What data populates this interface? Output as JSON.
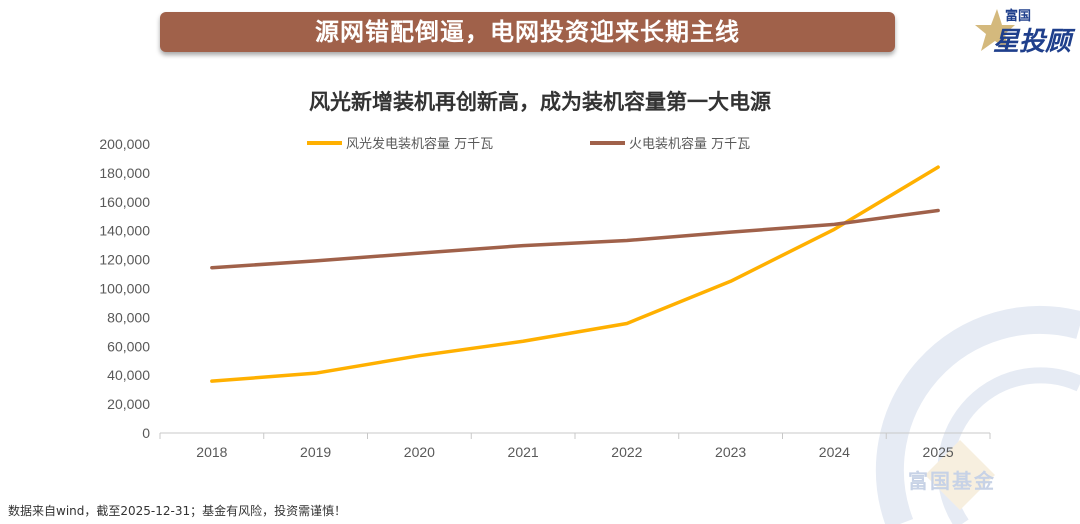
{
  "header": {
    "banner": "源网错配倒逼，电网投资迎来长期主线"
  },
  "logo": {
    "top": "富国",
    "bottom": "星投顾"
  },
  "watermark": "富国基金",
  "footer": "数据来自wind，截至2025-12-31；基金有风险，投资需谨慎！",
  "chart_data": {
    "type": "line",
    "title": "风光新增装机再创新高，成为装机容量第一大电源",
    "categories": [
      "2018",
      "2019",
      "2020",
      "2021",
      "2022",
      "2023",
      "2024",
      "2025"
    ],
    "series": [
      {
        "name": "风光发电装机容量 万千瓦",
        "color": "#ffb000",
        "values": [
          35900,
          41400,
          53500,
          63500,
          75800,
          105000,
          141000,
          184000
        ]
      },
      {
        "name": "火电装机容量 万千瓦",
        "color": "#a0614a",
        "values": [
          114400,
          119100,
          124500,
          129700,
          133200,
          139000,
          144400,
          154000
        ]
      }
    ],
    "ylim": [
      0,
      200000
    ],
    "yticks": [
      "0",
      "20,000",
      "40,000",
      "60,000",
      "80,000",
      "100,000",
      "120,000",
      "140,000",
      "160,000",
      "180,000",
      "200,000"
    ],
    "grid": false,
    "legend": "top"
  }
}
